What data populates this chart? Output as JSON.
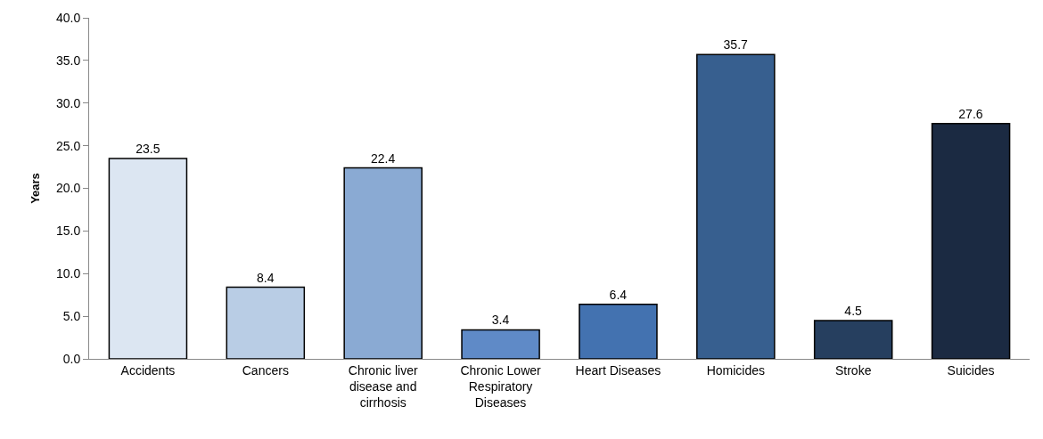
{
  "chart_data": {
    "type": "bar",
    "ylabel": "Years",
    "categories": [
      "Accidents",
      "Cancers",
      "Chronic liver disease and cirrhosis",
      "Chronic Lower Respiratory Diseases",
      "Heart Diseases",
      "Homicides",
      "Stroke",
      "Suicides"
    ],
    "values": [
      23.5,
      8.4,
      22.4,
      3.4,
      6.4,
      35.7,
      4.5,
      27.6
    ],
    "colors": [
      "#dce6f2",
      "#b9cde5",
      "#8aaad3",
      "#5f8ac7",
      "#4372b0",
      "#375f8f",
      "#263f5f",
      "#1b2a42"
    ],
    "ylim": [
      0,
      40
    ],
    "yticks": [
      {
        "value": 0,
        "label": "0.0"
      },
      {
        "value": 5,
        "label": "5.0"
      },
      {
        "value": 10,
        "label": "10.0"
      },
      {
        "value": 15,
        "label": "15.0"
      },
      {
        "value": 20,
        "label": "20.0"
      },
      {
        "value": 25,
        "label": "25.0"
      },
      {
        "value": 30,
        "label": "30.0"
      },
      {
        "value": 35,
        "label": "35.0"
      },
      {
        "value": 40,
        "label": "40.0"
      }
    ],
    "data_labels": true
  }
}
